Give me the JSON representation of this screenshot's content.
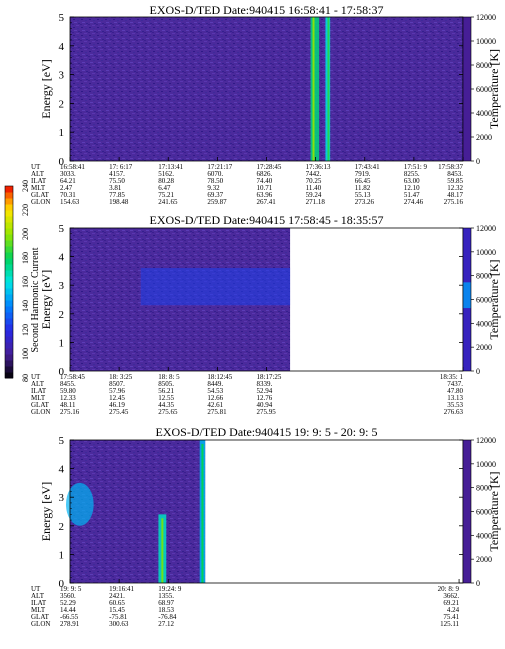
{
  "chart_data": {
    "type": "heatmap",
    "colorbar": {
      "label": "Second Harmonic Current",
      "ticks": [
        80,
        100,
        120,
        140,
        160,
        180,
        200,
        220,
        240
      ],
      "range": [
        80,
        240
      ]
    },
    "panels": [
      {
        "title": "EXOS-D/TED   Date:940415   16:58:41 - 17:58:37",
        "ylabel": "Energy [eV]",
        "yticks": [
          "0",
          "1",
          "2",
          "3",
          "4",
          "5"
        ],
        "ylim": [
          0,
          5
        ],
        "y2label": "Temperature [K]",
        "y2ticks": [
          "0",
          "2000",
          "4000",
          "6000",
          "8000",
          "10000",
          "12000"
        ],
        "y2lim": [
          0,
          12000
        ],
        "data_extent": [
          0,
          1
        ],
        "features": [
          {
            "kind": "vband",
            "start": 0.612,
            "end": 0.634,
            "level": 175
          },
          {
            "kind": "vband",
            "start": 0.65,
            "end": 0.662,
            "level": 160
          }
        ],
        "temp_strip_level": 100,
        "time_rows": [
          {
            "label": "UT",
            "values": [
              "16:58:41",
              "17: 6:17",
              "17:13:41",
              "17:21:17",
              "17:28:45",
              "17:36:13",
              "17:43:41",
              "17:51: 9",
              "17:58:37"
            ]
          },
          {
            "label": "ALT",
            "values": [
              "3033.",
              "4157.",
              "5162.",
              "6070.",
              "6826.",
              "7442.",
              "7919.",
              "8255.",
              "8453."
            ]
          },
          {
            "label": "ILAT",
            "values": [
              "64.21",
              "75.50",
              "80.28",
              "78.50",
              "74.40",
              "70.25",
              "66.45",
              "63.00",
              "59.85"
            ]
          },
          {
            "label": "MLT",
            "values": [
              "2.47",
              "3.81",
              "6.47",
              "9.32",
              "10.71",
              "11.40",
              "11.82",
              "12.10",
              "12.32"
            ]
          },
          {
            "label": "GLAT",
            "values": [
              "70.31",
              "77.85",
              "75.21",
              "69.37",
              "63.96",
              "59.24",
              "55.13",
              "51.47",
              "48.17"
            ]
          },
          {
            "label": "GLON",
            "values": [
              "154.63",
              "198.48",
              "241.65",
              "259.87",
              "267.41",
              "271.18",
              "273.26",
              "274.46",
              "275.16"
            ]
          }
        ],
        "tick_pos": [
          0,
          0.125,
          0.25,
          0.375,
          0.5,
          0.625,
          0.75,
          0.875,
          1
        ]
      },
      {
        "title": "EXOS-D/TED   Date:940415   17:58:45 - 18:35:57",
        "ylabel": "Energy [eV]",
        "yticks": [
          "0",
          "1",
          "2",
          "3",
          "4",
          "5"
        ],
        "ylim": [
          0,
          5
        ],
        "y2label": "Temperature [K]",
        "y2ticks": [
          "0",
          "2000",
          "4000",
          "6000",
          "8000",
          "10000",
          "12000"
        ],
        "y2lim": [
          0,
          12000
        ],
        "data_extent": [
          0,
          0.56
        ],
        "features": [
          {
            "kind": "hband",
            "start": 2.3,
            "end": 3.6,
            "level": 125
          }
        ],
        "temp_strip_level": 110,
        "time_rows": [
          {
            "label": "UT",
            "values": [
              "17:58:45",
              "18: 3:25",
              "18: 8: 5",
              "18:12:45",
              "18:17:25",
              "18:35: 1"
            ]
          },
          {
            "label": "ALT",
            "values": [
              "8455.",
              "8507.",
              "8505.",
              "8449.",
              "8339.",
              "7437."
            ]
          },
          {
            "label": "ILAT",
            "values": [
              "59.80",
              "57.96",
              "56.21",
              "54.53",
              "52.94",
              "47.80"
            ]
          },
          {
            "label": "MLT",
            "values": [
              "12.33",
              "12.45",
              "12.55",
              "12.66",
              "12.76",
              "13.13"
            ]
          },
          {
            "label": "GLAT",
            "values": [
              "48.11",
              "46.19",
              "44.35",
              "42.61",
              "40.94",
              "35.53"
            ]
          },
          {
            "label": "GLON",
            "values": [
              "275.16",
              "275.45",
              "275.65",
              "275.81",
              "275.95",
              "276.63"
            ]
          }
        ],
        "tick_pos": [
          0,
          0.125,
          0.25,
          0.375,
          0.5,
          1
        ]
      },
      {
        "title": "EXOS-D/TED   Date:940415   19: 9: 5 - 20: 9: 5",
        "ylabel": "Energy [eV]",
        "yticks": [
          "0",
          "1",
          "2",
          "3",
          "4",
          "5"
        ],
        "ylim": [
          0,
          5
        ],
        "y2label": "Temperature [K]",
        "y2ticks": [
          "0",
          "2000",
          "4000",
          "6000",
          "8000",
          "10000",
          "12000"
        ],
        "y2lim": [
          0,
          12000
        ],
        "data_extent": [
          0,
          0.344
        ],
        "features": [
          {
            "kind": "blob",
            "x0": 0.0,
            "x1": 0.05,
            "y0": 2.0,
            "y1": 3.5,
            "level": 150
          },
          {
            "kind": "spike",
            "x0": 0.225,
            "x1": 0.245,
            "y0": 0,
            "y1": 2.4,
            "level": 165
          },
          {
            "kind": "spike",
            "x0": 0.33,
            "x1": 0.344,
            "y0": 0,
            "y1": 5,
            "level": 150
          }
        ],
        "temp_strip_level": 100,
        "time_rows": [
          {
            "label": "UT",
            "values": [
              "19: 9: 5",
              "19:16:41",
              "19:24: 9",
              "20: 8: 9"
            ]
          },
          {
            "label": "ALT",
            "values": [
              "3560.",
              "2421.",
              "1355.",
              "3662."
            ]
          },
          {
            "label": "ILAT",
            "values": [
              "52.29",
              "60.65",
              "68.97",
              "69.21"
            ]
          },
          {
            "label": "MLT",
            "values": [
              "14.44",
              "15.45",
              "18.53",
              "4.24"
            ]
          },
          {
            "label": "GLAT",
            "values": [
              "-66.55",
              "-75.81",
              "-76.84",
              "75.41"
            ]
          },
          {
            "label": "GLON",
            "values": [
              "278.91",
              "300.63",
              "27.12",
              "125.11"
            ]
          }
        ],
        "tick_pos": [
          0,
          0.125,
          0.25,
          0.99
        ]
      }
    ]
  }
}
